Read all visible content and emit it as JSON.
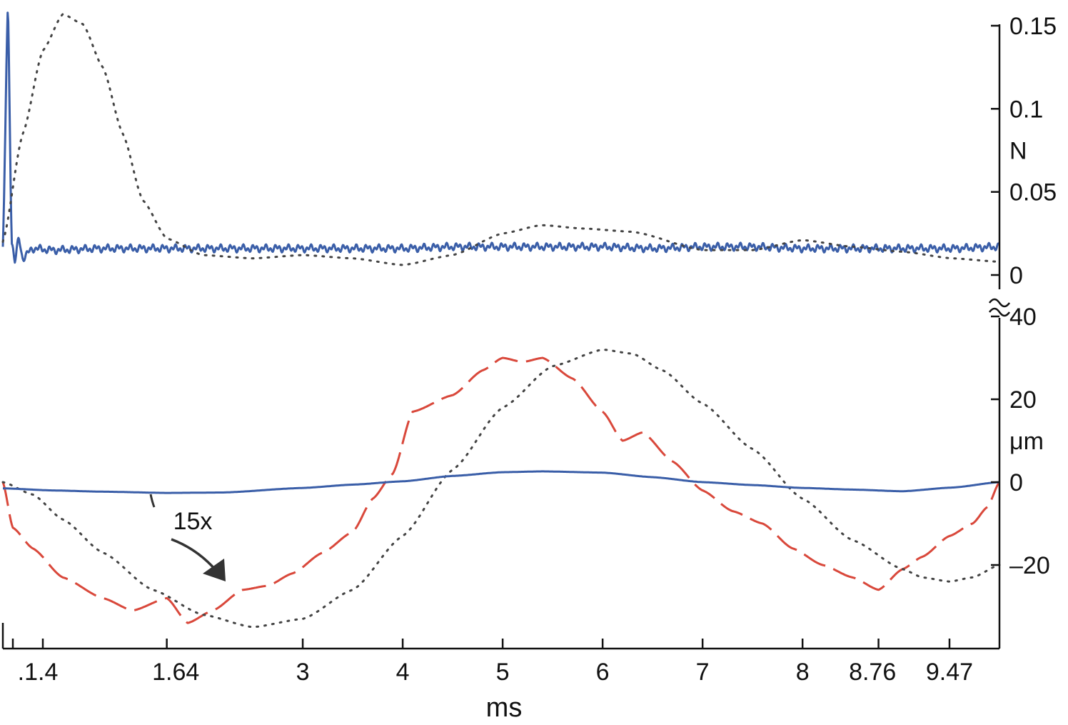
{
  "chart_data": [
    {
      "panel": "force",
      "type": "line",
      "ylabel": "N",
      "ylim": [
        -0.002,
        0.16
      ],
      "yticks": [
        0,
        0.05,
        0.1,
        0.15
      ],
      "ytick_labels": [
        "0",
        "0.05",
        "0.1",
        "0.15"
      ],
      "grid": false,
      "series": [
        {
          "style": "solid",
          "color": "#3a5ea8",
          "x": [
            0,
            0.05,
            0.09,
            0.12,
            0.16,
            0.2,
            0.3,
            0.5,
            1,
            1.5,
            2,
            2.5,
            3,
            3.5,
            4,
            4.5,
            5,
            5.5,
            6,
            6.5,
            7,
            7.5,
            8,
            8.5,
            9,
            9.5,
            9.97
          ],
          "y": [
            0.017,
            0.16,
            0.02,
            0.008,
            0.022,
            0.01,
            0.016,
            0.015,
            0.016,
            0.016,
            0.016,
            0.016,
            0.016,
            0.016,
            0.016,
            0.017,
            0.017,
            0.017,
            0.017,
            0.016,
            0.017,
            0.017,
            0.016,
            0.016,
            0.016,
            0.016,
            0.017
          ],
          "noise": 0.0025
        },
        {
          "style": "dotted",
          "color": "#444444",
          "x": [
            0,
            0.2,
            0.4,
            0.6,
            0.8,
            1.0,
            1.2,
            1.4,
            1.64,
            2.0,
            2.5,
            3.0,
            3.5,
            4.0,
            4.5,
            5.0,
            5.39,
            5.8,
            6.3,
            7.0,
            7.5,
            8.0,
            8.5,
            9.0,
            9.5,
            9.97
          ],
          "y": [
            0.02,
            0.085,
            0.135,
            0.157,
            0.151,
            0.125,
            0.085,
            0.045,
            0.022,
            0.012,
            0.01,
            0.012,
            0.01,
            0.006,
            0.012,
            0.025,
            0.03,
            0.028,
            0.026,
            0.015,
            0.015,
            0.021,
            0.017,
            0.014,
            0.01,
            0.008
          ]
        }
      ]
    },
    {
      "panel": "displacement",
      "type": "line",
      "xlabel": "ms",
      "ylabel": "μm",
      "xlim": [
        0,
        9.97
      ],
      "ylim": [
        -38,
        38
      ],
      "xticks": [
        0.1,
        0.4,
        1.64,
        3,
        4,
        5,
        6,
        7,
        8,
        8.76,
        9.47
      ],
      "xtick_labels": [
        ".1.4",
        "1.64",
        "3",
        "4",
        "5",
        "6",
        "7",
        "8",
        "8.76",
        "9.47"
      ],
      "xtick_label_positions": [
        0.35,
        1.73,
        3,
        4,
        5,
        6,
        7,
        8,
        8.7,
        9.47
      ],
      "yticks": [
        -20,
        0,
        20,
        40
      ],
      "ytick_labels": [
        "–20",
        "0",
        "20",
        "40"
      ],
      "grid": false,
      "annotations": [
        {
          "text": "15x",
          "x": 1.9,
          "y": -11
        }
      ],
      "series": [
        {
          "style": "dashed",
          "color": "#d9483b",
          "x": [
            0,
            0.1,
            0.3,
            0.6,
            1.0,
            1.3,
            1.64,
            1.85,
            2.1,
            2.4,
            2.65,
            2.9,
            3.2,
            3.5,
            3.7,
            3.9,
            4.1,
            4.5,
            4.8,
            5.0,
            5.2,
            5.4,
            5.7,
            6.0,
            6.2,
            6.4,
            6.7,
            7.0,
            7.3,
            7.6,
            7.9,
            8.2,
            8.5,
            8.76,
            9.0,
            9.2,
            9.47,
            9.7,
            9.85,
            9.97
          ],
          "y": [
            0,
            -11,
            -16,
            -23,
            -28,
            -31,
            -28,
            -34,
            -31,
            -26,
            -25,
            -22,
            -17,
            -12,
            -4,
            2,
            17,
            21,
            27,
            30,
            29,
            30,
            25,
            17,
            10,
            12,
            5,
            -2,
            -7,
            -10,
            -16,
            -20,
            -23,
            -26,
            -21,
            -18,
            -13,
            -10,
            -6,
            0
          ]
        },
        {
          "style": "dotted",
          "color": "#444444",
          "x": [
            0,
            0.3,
            0.6,
            1.0,
            1.5,
            2.0,
            2.5,
            3.0,
            3.5,
            4.0,
            4.5,
            5.0,
            5.5,
            6.0,
            6.3,
            6.6,
            7.0,
            7.5,
            8.0,
            8.5,
            9.0,
            9.2,
            9.47,
            9.7,
            9.97
          ],
          "y": [
            0,
            -3,
            -9,
            -17,
            -26,
            -32,
            -35,
            -33,
            -26,
            -13,
            3,
            18,
            28,
            32,
            31,
            27,
            19,
            8,
            -4,
            -14,
            -21,
            -23,
            -24,
            -23,
            -20
          ]
        },
        {
          "style": "solid",
          "color": "#3a5ea8",
          "x": [
            0,
            0.5,
            1.0,
            1.64,
            2.2,
            3.0,
            3.5,
            4.0,
            4.5,
            5.0,
            5.4,
            6.0,
            6.5,
            7.0,
            7.5,
            8.0,
            8.5,
            9.0,
            9.5,
            9.97
          ],
          "y": [
            -1.5,
            -2,
            -2.3,
            -2.6,
            -2.5,
            -1.4,
            -0.6,
            0.2,
            1.5,
            2.4,
            2.6,
            2.3,
            1.2,
            0,
            -0.7,
            -1.4,
            -1.8,
            -2.2,
            -1.3,
            0
          ]
        }
      ]
    }
  ]
}
